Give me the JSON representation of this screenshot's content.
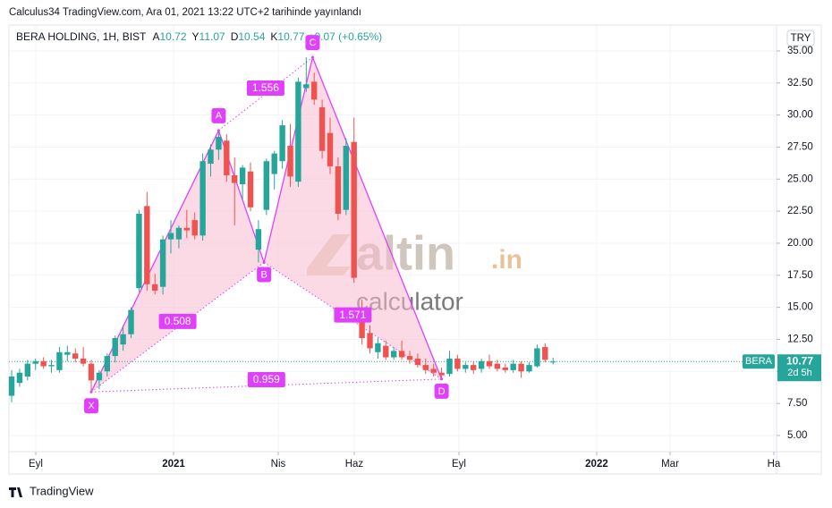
{
  "header": "Calculus34 TradingView.com, Ara 01, 2021 13:22 UTC+2 tarihinde yayınlandı",
  "legend": {
    "symbol": "BERA HOLDING, 1H, BIST",
    "keys": [
      "A",
      "Y",
      "D",
      "K"
    ],
    "change": "+0.07 (+0.65%)"
  },
  "currency": "TRY",
  "last_price_tag": {
    "label": "BERA",
    "countdown": "2d 5h"
  },
  "watermark": {
    "brand": "altin",
    "suffix": ".in",
    "sub": "calculator"
  },
  "footer": "TradingView",
  "chart_data": {
    "type": "candlestick",
    "up_color": "#26a69a",
    "down_color": "#ef5350",
    "categories": [
      null,
      null,
      null,
      null,
      null,
      null,
      null,
      null,
      null,
      null,
      null,
      null,
      null,
      null,
      null,
      null,
      null,
      null,
      null,
      null,
      null,
      null,
      null,
      null,
      null,
      null,
      null,
      null,
      null,
      null,
      null,
      null,
      null,
      null,
      null,
      null,
      null,
      null,
      null,
      null,
      null,
      null,
      null,
      null,
      null,
      null,
      null,
      null,
      null,
      null,
      null,
      null,
      null,
      null,
      null,
      null,
      null,
      null,
      null,
      null,
      null,
      null,
      null,
      null,
      null,
      null,
      null,
      null,
      null
    ],
    "open": [
      8.1,
      9.1,
      9.6,
      10.6,
      10.8,
      10.4,
      10.1,
      11.3,
      11.4,
      11.0,
      10.6,
      9.3,
      10.0,
      11.2,
      12.1,
      12.9,
      16.5,
      22.9,
      16.8,
      16.6,
      20.3,
      20.3,
      21.2,
      21.8,
      20.6,
      26.2,
      27.3,
      28.0,
      25.3,
      24.6,
      25.6,
      19.5,
      22.6,
      25.4,
      26.4,
      27.6,
      24.8,
      32.1,
      32.6,
      30.6,
      28.6,
      26.0,
      22.6,
      27.9,
      15.0,
      13.0,
      11.5,
      12.0,
      11.1,
      11.6,
      11.2,
      11.0,
      10.5,
      10.2,
      9.9,
      9.8,
      11.0,
      10.2,
      10.5,
      10.2,
      10.8,
      10.6,
      10.3,
      10.1,
      10.6,
      10.0,
      10.4,
      11.9,
      10.72
    ],
    "high": [
      10.1,
      10.2,
      10.9,
      11.0,
      11.1,
      10.9,
      11.9,
      12.0,
      11.8,
      11.9,
      10.9,
      10.1,
      11.4,
      12.8,
      13.6,
      15.0,
      22.6,
      24.0,
      17.6,
      20.6,
      21.8,
      21.4,
      22.6,
      22.4,
      27.0,
      27.7,
      28.8,
      28.5,
      26.7,
      26.1,
      26.3,
      21.8,
      26.6,
      27.2,
      29.6,
      29.3,
      32.9,
      34.5,
      33.3,
      31.2,
      29.8,
      26.7,
      28.2,
      29.8,
      15.6,
      13.6,
      12.6,
      12.4,
      11.9,
      12.4,
      11.6,
      11.4,
      11.0,
      10.6,
      10.3,
      11.6,
      11.3,
      10.7,
      10.8,
      11.0,
      11.3,
      10.9,
      10.6,
      10.9,
      10.8,
      10.7,
      12.1,
      12.2,
      11.07
    ],
    "low": [
      7.6,
      8.8,
      9.3,
      10.1,
      10.2,
      9.9,
      9.9,
      10.8,
      10.7,
      10.4,
      8.4,
      8.6,
      9.6,
      10.7,
      11.6,
      12.6,
      16.2,
      16.3,
      16.0,
      16.0,
      19.2,
      19.6,
      20.4,
      20.3,
      20.2,
      25.2,
      26.5,
      24.8,
      21.4,
      23.4,
      22.5,
      18.5,
      22.2,
      24.2,
      25.8,
      24.4,
      24.4,
      31.8,
      30.8,
      26.6,
      25.4,
      21.8,
      22.2,
      16.9,
      12.1,
      11.4,
      11.0,
      10.9,
      10.9,
      10.9,
      10.6,
      10.3,
      9.8,
      9.6,
      9.4,
      9.6,
      10.0,
      9.9,
      9.8,
      9.9,
      10.2,
      10.0,
      9.9,
      9.9,
      9.5,
      9.9,
      10.3,
      10.7,
      10.54
    ],
    "close": [
      9.6,
      9.9,
      10.6,
      10.8,
      10.4,
      10.5,
      11.5,
      11.5,
      11.0,
      10.6,
      9.3,
      9.9,
      11.2,
      12.6,
      12.9,
      14.8,
      22.3,
      16.8,
      16.3,
      20.3,
      20.8,
      21.2,
      21.0,
      20.6,
      26.4,
      27.3,
      28.3,
      25.3,
      24.7,
      25.9,
      22.8,
      21.1,
      26.4,
      27.0,
      29.2,
      25.2,
      32.6,
      32.4,
      31.2,
      27.2,
      26.0,
      22.3,
      27.6,
      17.3,
      12.6,
      11.8,
      12.2,
      11.1,
      11.6,
      11.1,
      10.9,
      10.5,
      10.1,
      9.9,
      9.7,
      11.0,
      10.2,
      10.5,
      10.1,
      10.8,
      10.4,
      10.2,
      10.1,
      10.6,
      10.0,
      10.5,
      11.8,
      10.9,
      10.77
    ],
    "xlim": [
      -0.34,
      96.07
    ],
    "xticks": [
      {
        "value": 3.03,
        "label": "Eyl"
      },
      {
        "value": 20.34,
        "label": "2021"
      },
      {
        "value": 33.48,
        "label": "Nis"
      },
      {
        "value": 43.03,
        "label": "Haz"
      },
      {
        "value": 56.18,
        "label": "Eyl"
      },
      {
        "value": 73.48,
        "label": "2022"
      },
      {
        "value": 82.7,
        "label": "Mar"
      },
      {
        "value": 95.73,
        "label": "Ha"
      }
    ],
    "ylim": [
      3.74,
      37.02
    ],
    "yticks": [
      {
        "value": 5,
        "label": "5.00"
      },
      {
        "value": 7.5,
        "label": "7.50"
      },
      {
        "value": 10,
        "label": "10.00"
      },
      {
        "value": 12.5,
        "label": "12.50"
      },
      {
        "value": 15,
        "label": "15.00"
      },
      {
        "value": 17.5,
        "label": "17.50"
      },
      {
        "value": 20,
        "label": "20.00"
      },
      {
        "value": 22.5,
        "label": "22.50"
      },
      {
        "value": 25,
        "label": "25.00"
      },
      {
        "value": 27.5,
        "label": "27.50"
      },
      {
        "value": 30,
        "label": "30.00"
      },
      {
        "value": 32.5,
        "label": "32.50"
      },
      {
        "value": 35,
        "label": "35.00"
      }
    ],
    "grid": true,
    "pattern": {
      "color": "#e040fb",
      "points": [
        {
          "label": "X",
          "x": 10,
          "y": 8.4
        },
        {
          "label": "A",
          "x": 26,
          "y": 28.8
        },
        {
          "label": "B",
          "x": 31.7,
          "y": 18.5
        },
        {
          "label": "C",
          "x": 37.8,
          "y": 34.5
        },
        {
          "label": "D",
          "x": 54,
          "y": 9.4
        }
      ],
      "ratios": [
        0.508,
        1.556,
        1.571,
        0.959
      ]
    }
  }
}
